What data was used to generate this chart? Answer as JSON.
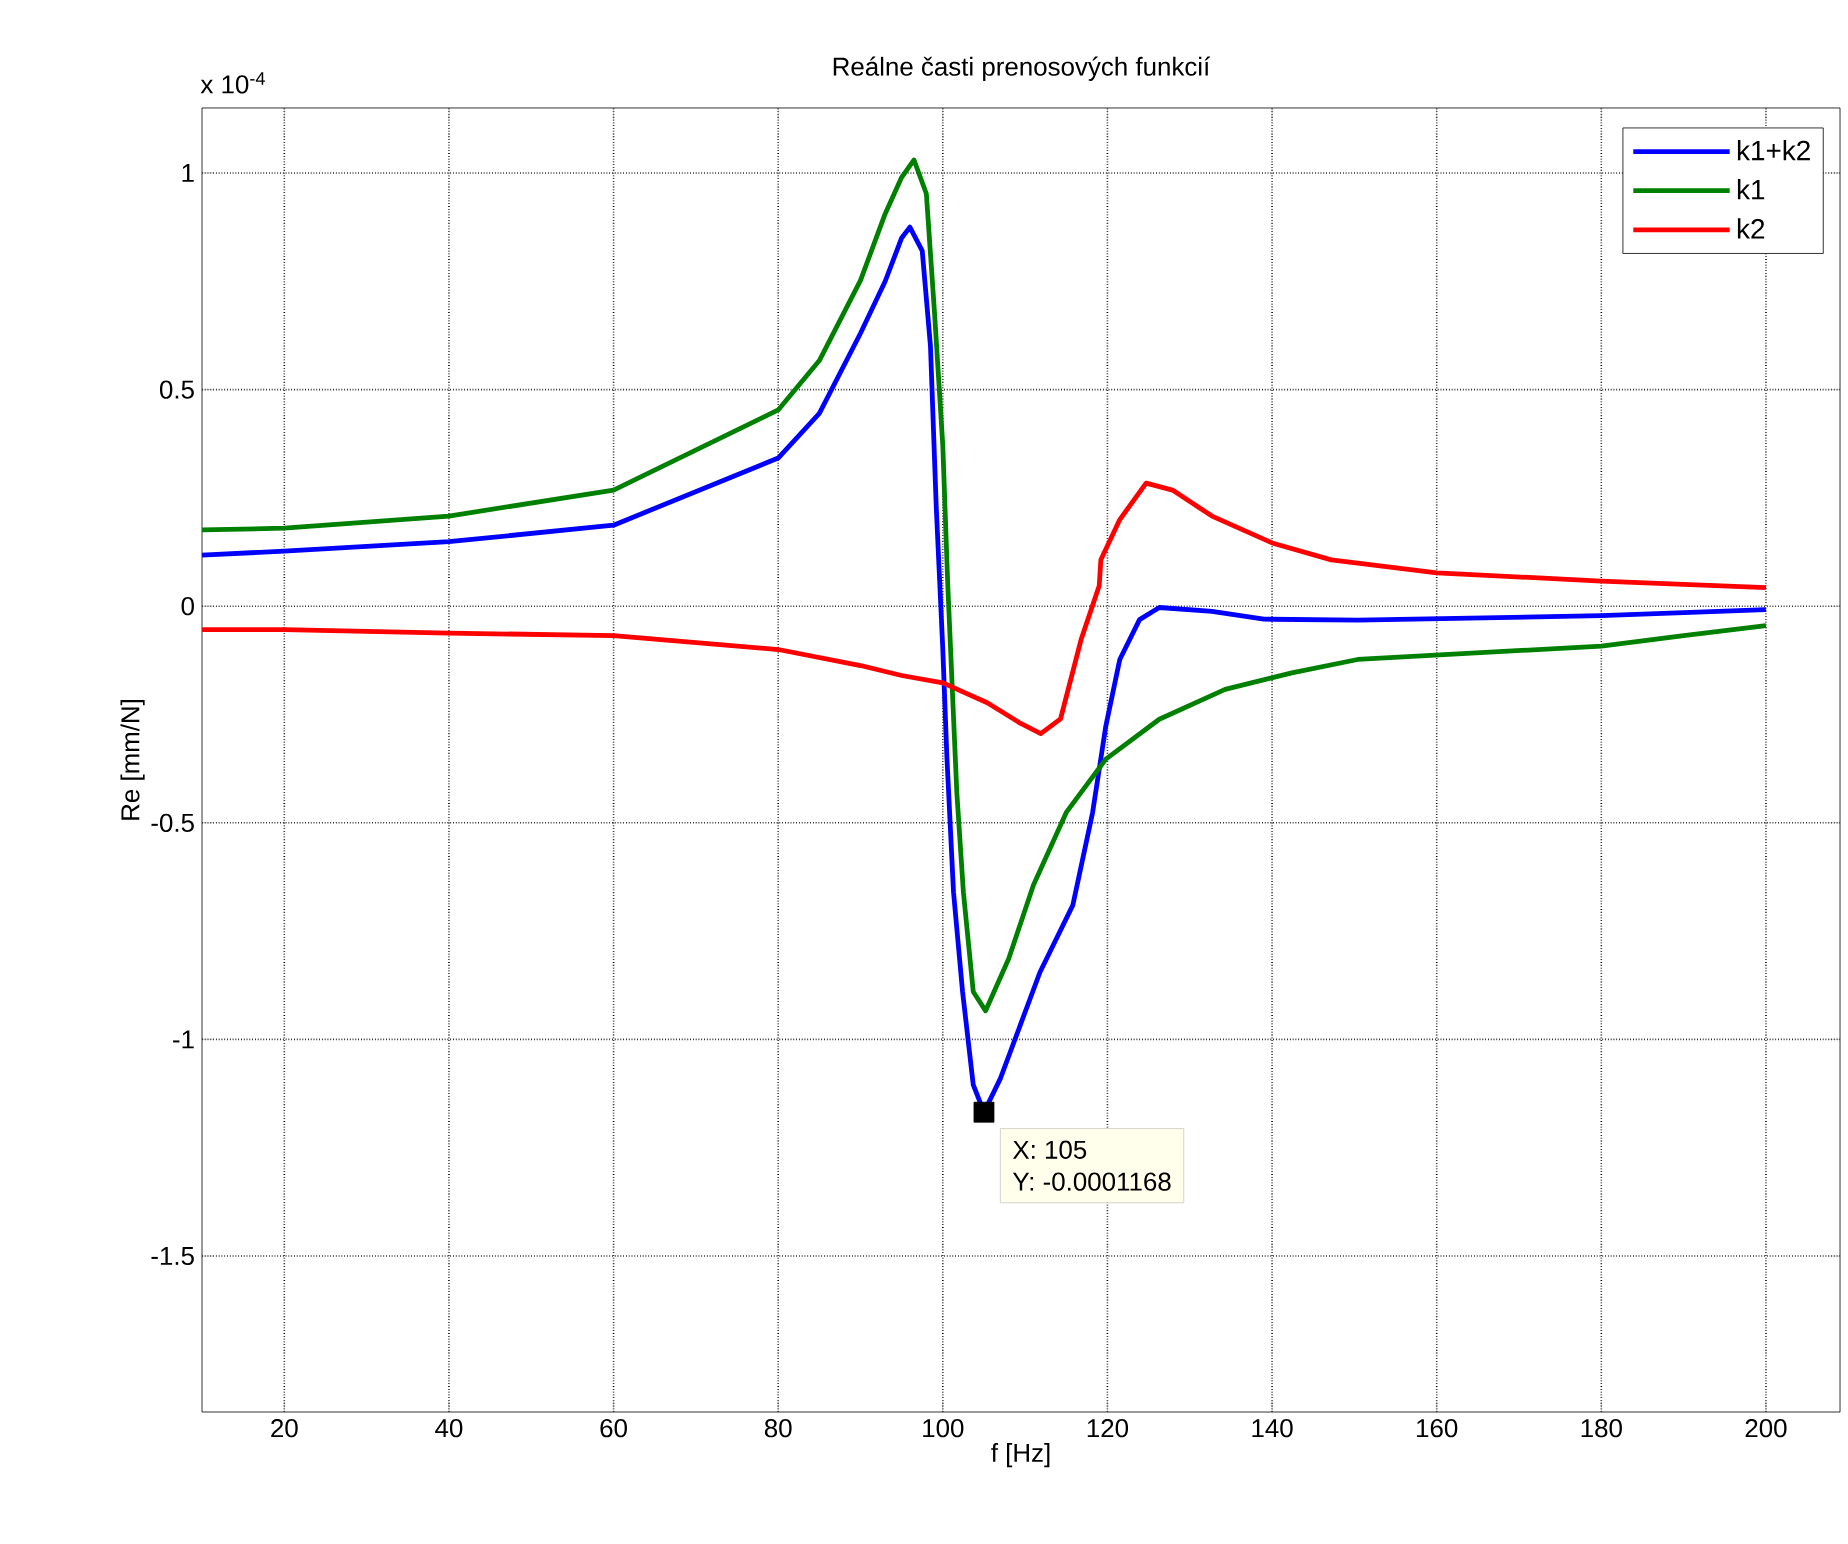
{
  "chart_data": {
    "type": "line",
    "title": "Reálne časti prenosových funkcií",
    "xlabel": "f [Hz]",
    "ylabel": "Re [mm/N]",
    "xlim": [
      10,
      209
    ],
    "ylim": [
      -1.86,
      1.15
    ],
    "xticks": [
      20,
      40,
      60,
      80,
      100,
      120,
      140,
      160,
      180,
      200
    ],
    "yticks": [
      -1.5,
      -1,
      -0.5,
      0,
      0.5,
      1
    ],
    "grid": true,
    "legend": "top right",
    "annotations": [
      "x 10$^{-4}$",
      {
        "text": "X: 105",
        "x": 105,
        "y": -1.168
      },
      {
        "text": "Y: -0.0001168",
        "x": 105,
        "y": -1.168
      }
    ],
    "series": [
      {
        "name": "k1+k2",
        "color": "#0000ff",
        "x": [
          10,
          20,
          40,
          60,
          80,
          85,
          90,
          93,
          95,
          96,
          97.5,
          98.5,
          99.2,
          100,
          100.5,
          101.3,
          102.4,
          103.7,
          105,
          107,
          111.8,
          115.8,
          118.2,
          119.8,
          121.5,
          123.9,
          126.3,
          132.7,
          139,
          150.4,
          180,
          200
        ],
        "values": [
          0.118,
          0.127,
          0.149,
          0.187,
          0.342,
          0.445,
          0.63,
          0.75,
          0.85,
          0.875,
          0.82,
          0.6,
          0.23,
          -0.1,
          -0.35,
          -0.66,
          -0.89,
          -1.105,
          -1.168,
          -1.09,
          -0.845,
          -0.69,
          -0.476,
          -0.277,
          -0.123,
          -0.031,
          -0.003,
          -0.012,
          -0.03,
          -0.032,
          -0.022,
          -0.008
        ]
      },
      {
        "name": "k1",
        "color": "#008000",
        "x": [
          10,
          20,
          40,
          60,
          80,
          85,
          90,
          93,
          95,
          96.5,
          98,
          99,
          100,
          100.6,
          101.7,
          102.5,
          103.7,
          105.2,
          108,
          111,
          115,
          119.8,
          126.3,
          134.3,
          142.4,
          150.4,
          180,
          190,
          200
        ],
        "values": [
          0.176,
          0.18,
          0.208,
          0.268,
          0.453,
          0.567,
          0.752,
          0.906,
          0.99,
          1.03,
          0.952,
          0.675,
          0.37,
          0.05,
          -0.43,
          -0.66,
          -0.89,
          -0.934,
          -0.814,
          -0.644,
          -0.476,
          -0.353,
          -0.261,
          -0.192,
          -0.154,
          -0.123,
          -0.092,
          -0.068,
          -0.045
        ]
      },
      {
        "name": "k2",
        "color": "#ff0000",
        "x": [
          10,
          20,
          40,
          60,
          80,
          90,
          95,
          100,
          105.4,
          109.4,
          111.9,
          114.3,
          116.8,
          119,
          119.2,
          121.5,
          124.7,
          127.9,
          132.7,
          140,
          147.2,
          160,
          180,
          200
        ],
        "values": [
          -0.054,
          -0.054,
          -0.062,
          -0.068,
          -0.1,
          -0.137,
          -0.16,
          -0.177,
          -0.223,
          -0.27,
          -0.294,
          -0.26,
          -0.077,
          0.047,
          0.107,
          0.2,
          0.284,
          0.268,
          0.208,
          0.146,
          0.107,
          0.077,
          0.058,
          0.043
        ]
      }
    ]
  }
}
